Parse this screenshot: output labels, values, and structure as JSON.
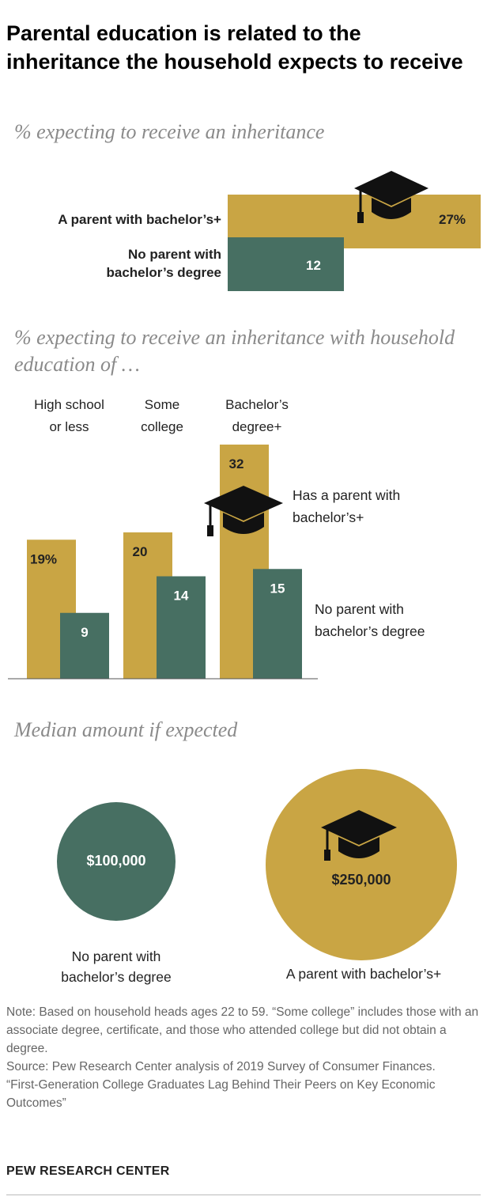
{
  "title": "Parental education is related to the inheritance the household expects to receive",
  "section1": {
    "subtitle": "% expecting to receive an inheritance",
    "bars": [
      {
        "label": "A parent with bachelor’s+",
        "value": 27,
        "value_label": "27%",
        "color": "#c9a544"
      },
      {
        "label": "No parent with bachelor’s degree",
        "value": 12,
        "value_label": "12",
        "color": "#476f62"
      }
    ]
  },
  "section2": {
    "subtitle": "% expecting to receive an inheritance with household education of …",
    "legend": {
      "gold": "Has a parent with bachelor’s+",
      "green": "No parent with bachelor’s degree"
    }
  },
  "section3": {
    "subtitle": "Median amount if expected",
    "circles": [
      {
        "value": "$100,000",
        "label": "No parent with bachelor’s degree",
        "amount": 100000,
        "color": "#476f62"
      },
      {
        "value": "$250,000",
        "label": "A parent with bachelor’s+",
        "amount": 250000,
        "color": "#c9a544"
      }
    ]
  },
  "chart_data": [
    {
      "type": "bar",
      "orientation": "horizontal",
      "title": "% expecting to receive an inheritance",
      "categories": [
        "A parent with bachelor’s+",
        "No parent with bachelor’s degree"
      ],
      "values": [
        27,
        12
      ]
    },
    {
      "type": "bar",
      "title": "% expecting to receive an inheritance with household education of …",
      "categories": [
        "High school or less",
        "Some college",
        "Bachelor’s degree+"
      ],
      "category_lines": [
        [
          "High school",
          "or less"
        ],
        [
          "Some",
          "college"
        ],
        [
          "Bachelor’s",
          "degree+"
        ]
      ],
      "series": [
        {
          "name": "Has a parent with bachelor’s+",
          "values": [
            19,
            20,
            32
          ],
          "labels": [
            "19%",
            "20",
            "32"
          ],
          "color": "#c9a544"
        },
        {
          "name": "No parent with bachelor’s degree",
          "values": [
            9,
            14,
            15
          ],
          "labels": [
            "9",
            "14",
            "15"
          ],
          "color": "#476f62"
        }
      ],
      "ylim": [
        0,
        32
      ]
    },
    {
      "type": "bubble",
      "title": "Median amount if expected",
      "categories": [
        "No parent with bachelor’s degree",
        "A parent with bachelor’s+"
      ],
      "values": [
        100000,
        250000
      ],
      "labels": [
        "$100,000",
        "$250,000"
      ]
    }
  ],
  "notes": {
    "note": "Note: Based on household heads ages 22 to 59. “Some college” includes those with an associate degree, certificate, and those who attended college but did not obtain a degree.",
    "source": "Source: Pew Research Center analysis of 2019 Survey of Consumer Finances.",
    "report": "“First-Generation College Graduates Lag Behind Their Peers on Key Economic Outcomes”",
    "org": "PEW RESEARCH CENTER"
  },
  "icons": {
    "graduation": "graduation-cap-icon"
  },
  "colors": {
    "gold": "#c9a544",
    "green": "#476f62",
    "axis": "#555555"
  }
}
